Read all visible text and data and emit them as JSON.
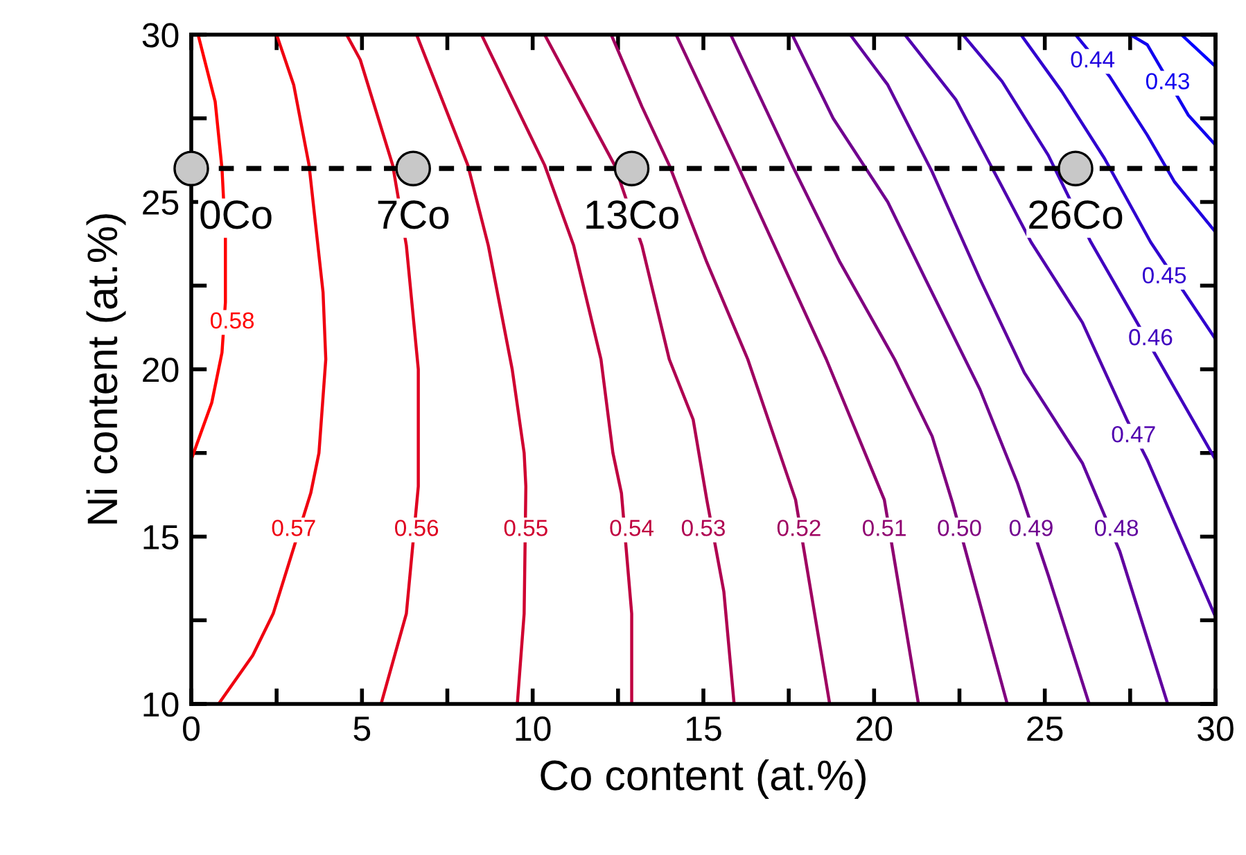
{
  "chart_data": {
    "type": "line",
    "xlabel": "Co content (at.%)",
    "ylabel": "Ni content (at.%)",
    "xlim": [
      0,
      30
    ],
    "ylim": [
      10,
      30
    ],
    "xticks": [
      0,
      {
        "value": 2.5,
        "label": null
      },
      5,
      {
        "value": 7.5,
        "label": null
      },
      10,
      {
        "value": 12.5,
        "label": null
      },
      15,
      {
        "value": 17.5,
        "label": null
      },
      20,
      {
        "value": 22.5,
        "label": null
      },
      25,
      {
        "value": 27.5,
        "label": null
      },
      30
    ],
    "yticks": [
      10,
      {
        "value": 12.5,
        "label": null
      },
      15,
      {
        "value": 17.5,
        "label": null
      },
      20,
      {
        "value": 22.5,
        "label": null
      },
      25,
      {
        "value": 27.5,
        "label": null
      },
      30
    ],
    "grid": false,
    "legend": false,
    "line_style": "solid",
    "series": [
      {
        "color": "#ff0000",
        "x": [
          0.2,
          0.7,
          0.9,
          1.0,
          1.0,
          0.9,
          0.6,
          0
        ],
        "values": [
          30,
          28,
          26,
          24,
          22,
          20.5,
          19,
          17.3
        ]
      },
      {
        "color": "#ef0010",
        "x": [
          2.5,
          3.0,
          3.45,
          3.86,
          3.94,
          3.74,
          3.5,
          2.4,
          1.8,
          0.8
        ],
        "values": [
          30,
          28.5,
          26.1,
          22.3,
          20.3,
          17.5,
          16.3,
          12.7,
          11.45,
          10
        ]
      },
      {
        "color": "#df0020",
        "x": [
          4.55,
          4.95,
          5.9,
          6.3,
          6.65,
          6.65,
          6.3,
          5.56
        ],
        "values": [
          30,
          29.25,
          26.1,
          23.7,
          20,
          16.5,
          12.7,
          10
        ]
      },
      {
        "color": "#cf0030",
        "x": [
          6.6,
          8.1,
          8.7,
          9.4,
          9.75,
          9.8,
          9.75,
          9.55
        ],
        "values": [
          30,
          26.1,
          23.7,
          20,
          17.5,
          16.5,
          12.7,
          10
        ]
      },
      {
        "color": "#bf0040",
        "x": [
          8.5,
          10.35,
          11.2,
          12.0,
          12.35,
          12.6,
          12.9,
          12.9
        ],
        "values": [
          30,
          26.1,
          23.7,
          20.3,
          17.5,
          16.3,
          12.7,
          10
        ]
      },
      {
        "color": "#af0050",
        "x": [
          10.35,
          12.4,
          13.2,
          14.0,
          14.7,
          15.1,
          15.6,
          15.9
        ],
        "values": [
          30,
          26.1,
          23.7,
          20.3,
          18.5,
          16.1,
          13.35,
          10
        ]
      },
      {
        "color": "#9f0060",
        "x": [
          12.3,
          13.2,
          14.0,
          15.1,
          16.3,
          17.7,
          18.7
        ],
        "values": [
          30,
          27.85,
          26.1,
          23.2,
          20.3,
          16.1,
          10
        ]
      },
      {
        "color": "#8f0070",
        "x": [
          14.2,
          16.0,
          17.3,
          18.6,
          20.3,
          21.3
        ],
        "values": [
          30,
          26.1,
          23.2,
          20.3,
          16.1,
          10
        ]
      },
      {
        "color": "#80007f",
        "x": [
          15.8,
          17.6,
          19.0,
          20.6,
          21.7,
          22.3,
          23.9
        ],
        "values": [
          30,
          26.1,
          23.2,
          20.3,
          18.0,
          16.0,
          10
        ]
      },
      {
        "color": "#70008f",
        "x": [
          17.6,
          18.8,
          20.4,
          21.5,
          23.1,
          24.2,
          25.1,
          26.3
        ],
        "values": [
          30,
          27.5,
          25.0,
          22.7,
          19.4,
          16.6,
          13.85,
          10
        ]
      },
      {
        "color": "#60009f",
        "x": [
          19.3,
          20.4,
          21.7,
          23.1,
          24.4,
          26.1,
          27.2,
          28.6
        ],
        "values": [
          30,
          28.5,
          25.9,
          22.7,
          19.9,
          17.2,
          14.55,
          10
        ]
      },
      {
        "color": "#5000af",
        "x": [
          20.9,
          22.4,
          23.75,
          24.6,
          26.1,
          27.4,
          28.0,
          30
        ],
        "values": [
          30,
          28.05,
          25.45,
          23.8,
          21.4,
          18.5,
          17.3,
          12.6
        ]
      },
      {
        "color": "#4000bf",
        "x": [
          22.6,
          23.75,
          25.1,
          26.35,
          27.7,
          30
        ],
        "values": [
          30,
          28.6,
          26.4,
          23.8,
          21.4,
          17.3
        ]
      },
      {
        "color": "#3000cf",
        "x": [
          24.3,
          25.5,
          26.75,
          28.1,
          30
        ],
        "values": [
          30,
          28.3,
          26.3,
          23.8,
          20.9
        ]
      },
      {
        "color": "#2000df",
        "x": [
          25.9,
          26.9,
          28.0,
          28.8,
          30
        ],
        "values": [
          30,
          28.75,
          27.0,
          25.6,
          24.1
        ]
      },
      {
        "color": "#1000ef",
        "x": [
          27.5,
          28.0,
          29.2,
          30
        ],
        "values": [
          30,
          29.7,
          27.6,
          26.7
        ]
      },
      {
        "color": "#0000ff",
        "x": [
          29.0,
          30
        ],
        "values": [
          30,
          29.05
        ]
      },
      {
        "type": "scatter",
        "marker": "circle",
        "color": "#c8c8c8",
        "x": [
          0,
          6.5,
          12.9,
          25.9
        ],
        "values": [
          26,
          26,
          26,
          26
        ]
      }
    ],
    "ref_lines": [
      {
        "axis": "y",
        "value": 26,
        "color": "#000000",
        "line_style": "dashed"
      }
    ],
    "annotations": [
      {
        "text": "0.58",
        "x": 1.2,
        "y": 21.4
      },
      {
        "text": "0.57",
        "x": 3.0,
        "y": 15.2
      },
      {
        "text": "0.56",
        "x": 6.6,
        "y": 15.2
      },
      {
        "text": "0.55",
        "x": 9.8,
        "y": 15.2
      },
      {
        "text": "0.54",
        "x": 12.9,
        "y": 15.2
      },
      {
        "text": "0.53",
        "x": 15.0,
        "y": 15.2
      },
      {
        "text": "0.52",
        "x": 17.8,
        "y": 15.2
      },
      {
        "text": "0.51",
        "x": 20.3,
        "y": 15.2
      },
      {
        "text": "0.50",
        "x": 22.5,
        "y": 15.2
      },
      {
        "text": "0.49",
        "x": 24.6,
        "y": 15.2
      },
      {
        "text": "0.48",
        "x": 27.1,
        "y": 15.2
      },
      {
        "text": "0.47",
        "x": 27.6,
        "y": 18.0
      },
      {
        "text": "0.46",
        "x": 28.1,
        "y": 20.9
      },
      {
        "text": "0.45",
        "x": 28.5,
        "y": 22.75
      },
      {
        "text": "0.44",
        "x": 26.4,
        "y": 29.2
      },
      {
        "text": "0.43",
        "x": 28.6,
        "y": 28.55
      },
      {
        "text": "0Co",
        "x": 0,
        "y": 26
      },
      {
        "text": "7Co",
        "x": 6.5,
        "y": 26
      },
      {
        "text": "13Co",
        "x": 12.9,
        "y": 26
      },
      {
        "text": "26Co",
        "x": 25.9,
        "y": 26
      }
    ]
  }
}
